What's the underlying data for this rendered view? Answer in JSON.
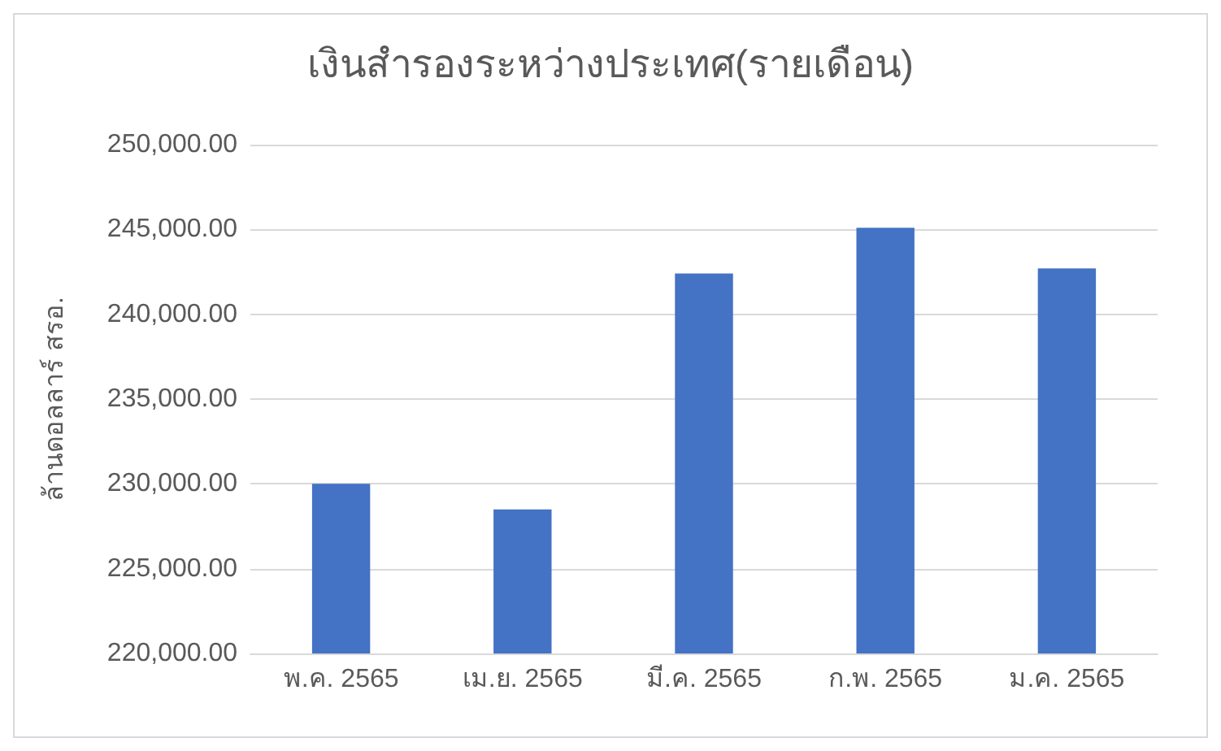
{
  "chart_data": {
    "type": "bar",
    "title": "เงินสำรองระหว่างประเทศ(รายเดือน)",
    "ylabel": "ล้านดอลลาร์ สรอ.",
    "categories": [
      "พ.ค. 2565",
      "เม.ย. 2565",
      "มี.ค. 2565",
      "ก.พ. 2565",
      "ม.ค. 2565"
    ],
    "values": [
      230000,
      228500,
      242400,
      245100,
      242700
    ],
    "color": "#4472c4",
    "ylim": [
      220000,
      250000
    ],
    "yticks": [
      {
        "value": 220000,
        "label": "220,000.00"
      },
      {
        "value": 225000,
        "label": "225,000.00"
      },
      {
        "value": 230000,
        "label": "230,000.00"
      },
      {
        "value": 235000,
        "label": "235,000.00"
      },
      {
        "value": 240000,
        "label": "240,000.00"
      },
      {
        "value": 245000,
        "label": "245,000.00"
      },
      {
        "value": 250000,
        "label": "250,000.00"
      }
    ],
    "grid": true
  }
}
